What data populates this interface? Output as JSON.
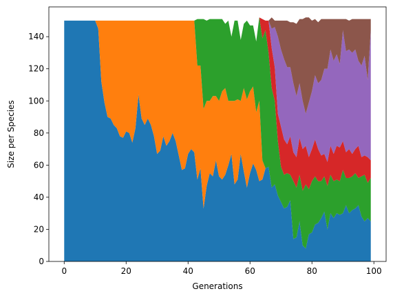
{
  "chart_data": {
    "type": "area",
    "stacked": true,
    "xlabel": "Generations",
    "ylabel": "Size per Species",
    "xlim": [
      -4.95,
      103.95
    ],
    "ylim": [
      0,
      158.55
    ],
    "xticks": [
      0,
      20,
      40,
      60,
      80,
      100
    ],
    "yticks": [
      0,
      20,
      40,
      60,
      80,
      100,
      120,
      140
    ],
    "xtick_labels": [
      "0",
      "20",
      "40",
      "60",
      "80",
      "100"
    ],
    "ytick_labels": [
      "0",
      "20",
      "40",
      "60",
      "80",
      "100",
      "120",
      "140"
    ],
    "grid": false,
    "legend": "none",
    "x": [
      0,
      1,
      2,
      3,
      4,
      5,
      6,
      7,
      8,
      9,
      10,
      11,
      12,
      13,
      14,
      15,
      16,
      17,
      18,
      19,
      20,
      21,
      22,
      23,
      24,
      25,
      26,
      27,
      28,
      29,
      30,
      31,
      32,
      33,
      34,
      35,
      36,
      37,
      38,
      39,
      40,
      41,
      42,
      43,
      44,
      45,
      46,
      47,
      48,
      49,
      50,
      51,
      52,
      53,
      54,
      55,
      56,
      57,
      58,
      59,
      60,
      61,
      62,
      63,
      64,
      65,
      66,
      67,
      68,
      69,
      70,
      71,
      72,
      73,
      74,
      75,
      76,
      77,
      78,
      79,
      80,
      81,
      82,
      83,
      84,
      85,
      86,
      87,
      88,
      89,
      90,
      91,
      92,
      93,
      94,
      95,
      96,
      97,
      98,
      99
    ],
    "series": [
      {
        "color": "#1f77b4",
        "values": [
          150,
          150,
          150,
          150,
          150,
          150,
          150,
          150,
          150,
          150,
          150,
          145,
          112,
          99,
          90,
          89,
          85,
          83,
          78,
          77,
          81,
          80,
          74,
          83,
          104,
          89,
          85,
          89,
          85,
          78,
          67,
          69,
          78,
          72,
          75,
          80,
          75,
          66,
          57,
          58,
          67,
          70,
          68,
          51,
          58,
          33,
          47,
          55,
          53,
          63,
          53,
          51,
          54,
          60,
          67,
          48,
          51,
          67,
          56,
          46,
          55,
          61,
          57,
          50,
          51,
          58,
          59,
          46,
          48,
          41,
          37,
          33,
          34,
          38,
          14,
          15,
          25,
          10,
          8,
          17,
          18,
          23,
          24,
          27,
          31,
          20,
          30,
          27,
          30,
          29,
          30,
          35,
          30,
          32,
          33,
          35,
          28,
          25,
          27,
          25
        ]
      },
      {
        "color": "#ff7f0e",
        "values": [
          0,
          0,
          0,
          0,
          0,
          0,
          0,
          0,
          0,
          0,
          0,
          5,
          38,
          51,
          60,
          61,
          65,
          67,
          72,
          73,
          69,
          70,
          76,
          67,
          46,
          61,
          65,
          61,
          65,
          72,
          83,
          81,
          72,
          78,
          75,
          70,
          75,
          84,
          93,
          92,
          83,
          80,
          82,
          71,
          64,
          62,
          53,
          45,
          50,
          40,
          47,
          55,
          54,
          40,
          33,
          52,
          50,
          33,
          52,
          55,
          51,
          48,
          36,
          50,
          12,
          0,
          0,
          0,
          0,
          0,
          0,
          0,
          0,
          0,
          0,
          0,
          0,
          0,
          0,
          0,
          0,
          0,
          0,
          0,
          0,
          0,
          0,
          0,
          0,
          0,
          0,
          0,
          0,
          0,
          0,
          0,
          0,
          0,
          0,
          0
        ]
      },
      {
        "color": "#2ca02c",
        "values": [
          0,
          0,
          0,
          0,
          0,
          0,
          0,
          0,
          0,
          0,
          0,
          0,
          0,
          0,
          0,
          0,
          0,
          0,
          0,
          0,
          0,
          0,
          0,
          0,
          0,
          0,
          0,
          0,
          0,
          0,
          0,
          0,
          0,
          0,
          0,
          0,
          0,
          0,
          0,
          0,
          0,
          0,
          0,
          29,
          29,
          56,
          50,
          51,
          48,
          48,
          51,
          45,
          40,
          50,
          40,
          50,
          49,
          38,
          40,
          49,
          41,
          38,
          44,
          52,
          76,
          86,
          71,
          62,
          52,
          34,
          22,
          21,
          21,
          16,
          36,
          31,
          29,
          34,
          40,
          28,
          32,
          30,
          26,
          23,
          22,
          27,
          24,
          23,
          21,
          21,
          27,
          17,
          22,
          21,
          22,
          17,
          25,
          29,
          22,
          27
        ]
      },
      {
        "color": "#d62728",
        "values": [
          0,
          0,
          0,
          0,
          0,
          0,
          0,
          0,
          0,
          0,
          0,
          0,
          0,
          0,
          0,
          0,
          0,
          0,
          0,
          0,
          0,
          0,
          0,
          0,
          0,
          0,
          0,
          0,
          0,
          0,
          0,
          0,
          0,
          0,
          0,
          0,
          0,
          0,
          0,
          0,
          0,
          0,
          0,
          0,
          0,
          0,
          0,
          0,
          0,
          0,
          0,
          0,
          0,
          0,
          0,
          0,
          0,
          0,
          0,
          0,
          0,
          0,
          0,
          0,
          12,
          6,
          20,
          25,
          21,
          17,
          25,
          22,
          18,
          24,
          18,
          19,
          23,
          26,
          24,
          20,
          20,
          23,
          20,
          16,
          14,
          15,
          18,
          17,
          21,
          21,
          18,
          16,
          18,
          14,
          15,
          20,
          12,
          12,
          16,
          11
        ]
      },
      {
        "color": "#9467bd",
        "values": [
          0,
          0,
          0,
          0,
          0,
          0,
          0,
          0,
          0,
          0,
          0,
          0,
          0,
          0,
          0,
          0,
          0,
          0,
          0,
          0,
          0,
          0,
          0,
          0,
          0,
          0,
          0,
          0,
          0,
          0,
          0,
          0,
          0,
          0,
          0,
          0,
          0,
          0,
          0,
          0,
          0,
          0,
          0,
          0,
          0,
          0,
          0,
          0,
          0,
          0,
          0,
          0,
          0,
          0,
          0,
          0,
          0,
          0,
          0,
          0,
          0,
          0,
          0,
          0,
          0,
          0,
          0,
          12,
          25,
          48,
          48,
          50,
          48,
          43,
          43,
          38,
          34,
          30,
          20,
          34,
          36,
          40,
          41,
          47,
          53,
          58,
          60,
          58,
          57,
          52,
          69,
          63,
          62,
          63,
          62,
          53,
          57,
          62,
          48,
          81
        ]
      },
      {
        "color": "#8c564b",
        "values": [
          0,
          0,
          0,
          0,
          0,
          0,
          0,
          0,
          0,
          0,
          0,
          0,
          0,
          0,
          0,
          0,
          0,
          0,
          0,
          0,
          0,
          0,
          0,
          0,
          0,
          0,
          0,
          0,
          0,
          0,
          0,
          0,
          0,
          0,
          0,
          0,
          0,
          0,
          0,
          0,
          0,
          0,
          0,
          0,
          0,
          0,
          0,
          0,
          0,
          0,
          0,
          0,
          0,
          0,
          0,
          0,
          0,
          0,
          0,
          0,
          0,
          0,
          0,
          0,
          0,
          0,
          0,
          7,
          4,
          10,
          18,
          24,
          29,
          28,
          38,
          45,
          40,
          51,
          60,
          53,
          44,
          35,
          38,
          38,
          31,
          31,
          19,
          26,
          22,
          28,
          7,
          20,
          18,
          21,
          19,
          26,
          29,
          23,
          38,
          7
        ]
      }
    ]
  }
}
